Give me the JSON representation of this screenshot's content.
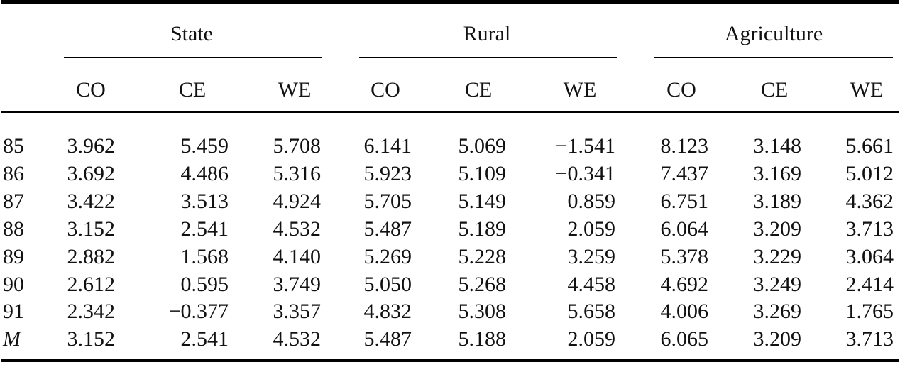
{
  "table": {
    "groups": [
      "State",
      "Rural",
      "Agriculture"
    ],
    "subheaders": [
      "CO",
      "CE",
      "WE",
      "CO",
      "CE",
      "WE",
      "CO",
      "CE",
      "WE"
    ],
    "rows": [
      {
        "label": "85",
        "values": [
          "3.962",
          "5.459",
          "5.708",
          "6.141",
          "5.069",
          "−1.541",
          "8.123",
          "3.148",
          "5.661"
        ]
      },
      {
        "label": "86",
        "values": [
          "3.692",
          "4.486",
          "5.316",
          "5.923",
          "5.109",
          "−0.341",
          "7.437",
          "3.169",
          "5.012"
        ]
      },
      {
        "label": "87",
        "values": [
          "3.422",
          "3.513",
          "4.924",
          "5.705",
          "5.149",
          "0.859",
          "6.751",
          "3.189",
          "4.362"
        ]
      },
      {
        "label": "88",
        "values": [
          "3.152",
          "2.541",
          "4.532",
          "5.487",
          "5.189",
          "2.059",
          "6.064",
          "3.209",
          "3.713"
        ]
      },
      {
        "label": "89",
        "values": [
          "2.882",
          "1.568",
          "4.140",
          "5.269",
          "5.228",
          "3.259",
          "5.378",
          "3.229",
          "3.064"
        ]
      },
      {
        "label": "90",
        "values": [
          "2.612",
          "0.595",
          "3.749",
          "5.050",
          "5.268",
          "4.458",
          "4.692",
          "3.249",
          "2.414"
        ]
      },
      {
        "label": "91",
        "values": [
          "2.342",
          "−0.377",
          "3.357",
          "4.832",
          "5.308",
          "5.658",
          "4.006",
          "3.269",
          "1.765"
        ]
      },
      {
        "label": "M",
        "values": [
          "3.152",
          "2.541",
          "4.532",
          "5.487",
          "5.188",
          "2.059",
          "6.065",
          "3.209",
          "3.713"
        ]
      }
    ]
  }
}
